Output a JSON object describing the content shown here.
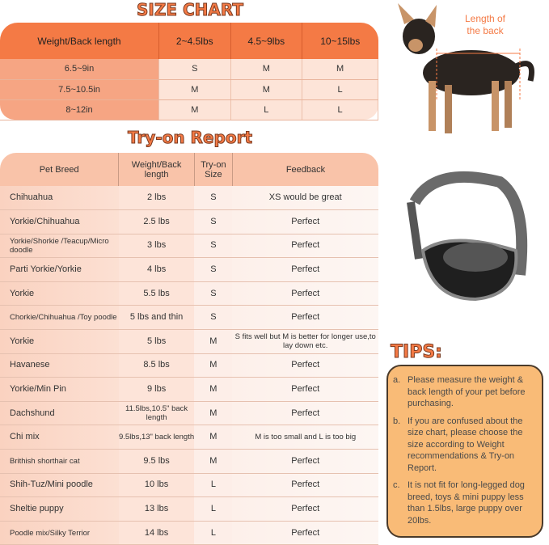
{
  "size_chart": {
    "title": "SIZE CHART",
    "headers": [
      "Weight/Back length",
      "2~4.5lbs",
      "4.5~9lbs",
      "10~15lbs"
    ],
    "rows": [
      [
        "6.5~9in",
        "S",
        "M",
        "M"
      ],
      [
        "7.5~10.5in",
        "M",
        "M",
        "L"
      ],
      [
        "8~12in",
        "M",
        "L",
        "L"
      ]
    ]
  },
  "try_on": {
    "title": "Try-on Report",
    "headers": [
      "Pet Breed",
      "Weight/Back length",
      "Try-on Size",
      "Feedback"
    ],
    "rows": [
      [
        "Chihuahua",
        "2 lbs",
        "S",
        "XS would be great"
      ],
      [
        "Yorkie/Chihuahua",
        "2.5 lbs",
        "S",
        "Perfect"
      ],
      [
        "Yorkie/Shorkie /Teacup/Micro doodle",
        "3 lbs",
        "S",
        "Perfect"
      ],
      [
        "Parti Yorkie/Yorkie",
        "4 lbs",
        "S",
        "Perfect"
      ],
      [
        "Yorkie",
        "5.5 lbs",
        "S",
        "Perfect"
      ],
      [
        "Chorkie/Chihuahua /Toy poodle",
        "5 lbs and thin",
        "S",
        "Perfect"
      ],
      [
        "Yorkie",
        "5 lbs",
        "M",
        "S fits well but M is better for longer use,to lay down etc."
      ],
      [
        "Havanese",
        "8.5 lbs",
        "M",
        "Perfect"
      ],
      [
        "Yorkie/Min Pin",
        "9 lbs",
        "M",
        "Perfect"
      ],
      [
        "Dachshund",
        "11.5lbs,10.5\" back length",
        "M",
        "Perfect"
      ],
      [
        "Chi mix",
        "9.5lbs,13\" back length",
        "M",
        "M is too small and L is too big"
      ],
      [
        "Brithish shorthair cat",
        "9.5 lbs",
        "M",
        "Perfect"
      ],
      [
        "Shih-Tuz/Mini poodle",
        "10 lbs",
        "L",
        "Perfect"
      ],
      [
        "Sheltie puppy",
        "13 lbs",
        "L",
        "Perfect"
      ],
      [
        "Poodle mix/Silky Terrior",
        "14 lbs",
        "L",
        "Perfect"
      ]
    ]
  },
  "dog_image": {
    "label": "Length of the back"
  },
  "tips": {
    "title": "TIPS:",
    "items": [
      {
        "marker": "a.",
        "text": "Please measure the weight & back length of your pet before purchasing."
      },
      {
        "marker": "b.",
        "text": "If you are confused about the size chart, please choose the size according to Weight recommendations & Try-on Report."
      },
      {
        "marker": "c.",
        "text": "It is not fit for long-legged dog breed, toys & mini puppy less than 1.5lbs, large puppy over 20lbs."
      }
    ]
  },
  "colors": {
    "accent": "#f47a45",
    "tips_bg": "#f9bb77"
  }
}
